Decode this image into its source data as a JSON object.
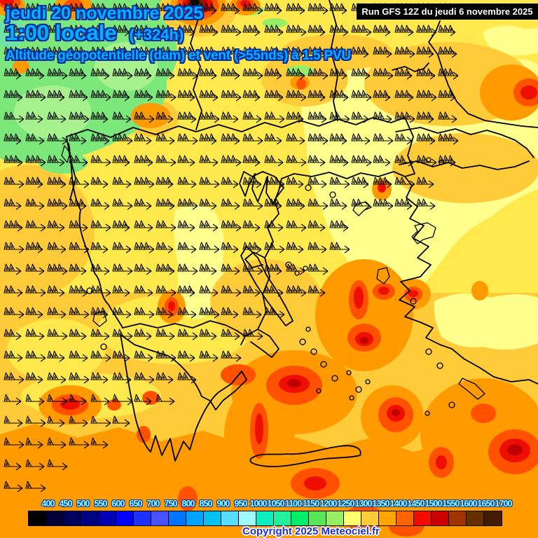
{
  "header": {
    "date": "jeudi 20 novembre 2025",
    "time": "1:00 locale",
    "offset": "(+324h)",
    "subtitle": "Altitude géopotentielle (dam) et vent (>55nds) à 1.5 PVU",
    "text_color": "#00b2ff",
    "outline_color": "#0a2fa0"
  },
  "run_box": {
    "label": "Run GFS 12Z du jeudi 6 novembre 2025",
    "bg_color": "#000000",
    "text_color": "#ffffff"
  },
  "footer": {
    "copyright": "Copyright 2025 Meteociel.fr",
    "text_color": "#1f2fd4",
    "outline_color": "#ffffff"
  },
  "legend": {
    "values": [
      "400",
      "450",
      "500",
      "550",
      "600",
      "650",
      "700",
      "750",
      "800",
      "850",
      "900",
      "950",
      "1000",
      "1050",
      "1100",
      "1150",
      "1200",
      "1250",
      "1300",
      "1350",
      "1400",
      "1450",
      "1500",
      "1550",
      "1600",
      "1650",
      "1700"
    ],
    "colors": [
      "#000000",
      "#000038",
      "#00005e",
      "#000084",
      "#0000b4",
      "#0000ff",
      "#1c30ff",
      "#4a52ff",
      "#0073ff",
      "#00a2ff",
      "#00c3f4",
      "#58dcff",
      "#9ffaff",
      "#0ceec0",
      "#21ef9b",
      "#00ee6a",
      "#57e657",
      "#96ef63",
      "#ffff6b",
      "#ffcb38",
      "#ffa400",
      "#ff6400",
      "#f20c00",
      "#cb0000",
      "#a03400",
      "#643000",
      "#411c00"
    ],
    "label_color": "#8cffff"
  },
  "map": {
    "palette": {
      "base_yellow": "#ffe94d",
      "pale_yellow": "#ffff8e",
      "golden": "#ffcb38",
      "green": "#7ce87c",
      "light_green": "#a8f18f",
      "teal_green": "#6fe2a5",
      "orange": "#ff9b00",
      "red_orange": "#ff5100",
      "red": "#ee0f00",
      "dark_red": "#c00000",
      "brown": "#5a2d00",
      "black_core": "#120a00",
      "coastline": "#000000",
      "wind_barb": "#000000"
    }
  }
}
